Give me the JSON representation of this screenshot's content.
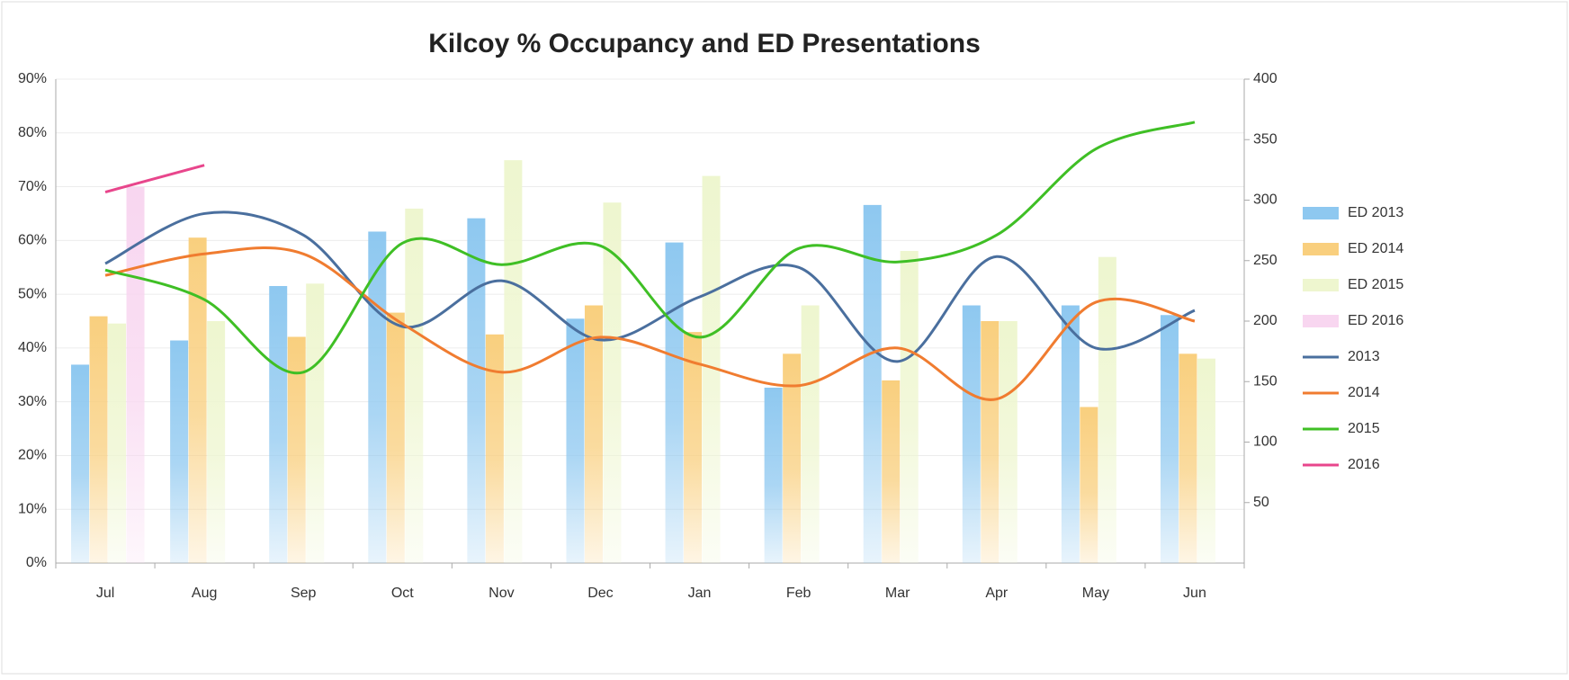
{
  "chart_data": {
    "type": "combo",
    "title": "Kilcoy % Occupancy and ED Presentations",
    "categories": [
      "Jul",
      "Aug",
      "Sep",
      "Oct",
      "Nov",
      "Dec",
      "Jan",
      "Feb",
      "Mar",
      "Apr",
      "May",
      "Jun"
    ],
    "ylim": [
      0,
      90
    ],
    "yticks": [
      {
        "value": 0,
        "label": "0%"
      },
      {
        "value": 10,
        "label": "10%"
      },
      {
        "value": 20,
        "label": "20%"
      },
      {
        "value": 30,
        "label": "30%"
      },
      {
        "value": 40,
        "label": "40%"
      },
      {
        "value": 50,
        "label": "50%"
      },
      {
        "value": 60,
        "label": "60%"
      },
      {
        "value": 70,
        "label": "70%"
      },
      {
        "value": 80,
        "label": "80%"
      },
      {
        "value": 90,
        "label": "90%"
      }
    ],
    "y2lim": [
      0,
      400
    ],
    "y2ticks": [
      50,
      100,
      150,
      200,
      250,
      300,
      350,
      400
    ],
    "grid": true,
    "legend": "right",
    "series": [
      {
        "name": "ED 2013",
        "type": "bar",
        "axis": "y2",
        "color": "#8ec8f0",
        "values": [
          164,
          184,
          229,
          274,
          285,
          202,
          265,
          145,
          296,
          213,
          213,
          205
        ]
      },
      {
        "name": "ED 2014",
        "type": "bar",
        "axis": "y2",
        "color": "#f9cf7e",
        "values": [
          204,
          269,
          187,
          207,
          189,
          213,
          191,
          173,
          151,
          200,
          129,
          173
        ]
      },
      {
        "name": "ED 2015",
        "type": "bar",
        "axis": "y2",
        "color": "#eef6cf",
        "values": [
          198,
          200,
          231,
          293,
          333,
          298,
          320,
          213,
          258,
          200,
          253,
          169
        ]
      },
      {
        "name": "ED 2016",
        "type": "bar",
        "axis": "y2",
        "color": "#f8d6f0",
        "values": [
          311,
          null,
          null,
          null,
          null,
          null,
          null,
          null,
          null,
          null,
          null,
          null
        ]
      },
      {
        "name": "2013",
        "type": "line",
        "color": "#4a6f9e",
        "values": [
          55.7,
          65,
          61,
          44,
          52.5,
          41.5,
          49.5,
          55,
          37.5,
          57,
          40,
          47
        ]
      },
      {
        "name": "2014",
        "type": "line",
        "color": "#f07c30",
        "values": [
          53.5,
          57.5,
          57.5,
          44.5,
          35.5,
          42,
          37,
          33,
          40,
          30.5,
          48.5,
          45
        ]
      },
      {
        "name": "2015",
        "type": "line",
        "color": "#3fbf25",
        "values": [
          54.5,
          49,
          35.5,
          59.5,
          55.5,
          59,
          42,
          58.5,
          56,
          61,
          77,
          82
        ]
      },
      {
        "name": "2016",
        "type": "line",
        "color": "#e8468c",
        "values": [
          69,
          74,
          null,
          null,
          null,
          null,
          null,
          null,
          null,
          null,
          null,
          null
        ]
      }
    ]
  }
}
